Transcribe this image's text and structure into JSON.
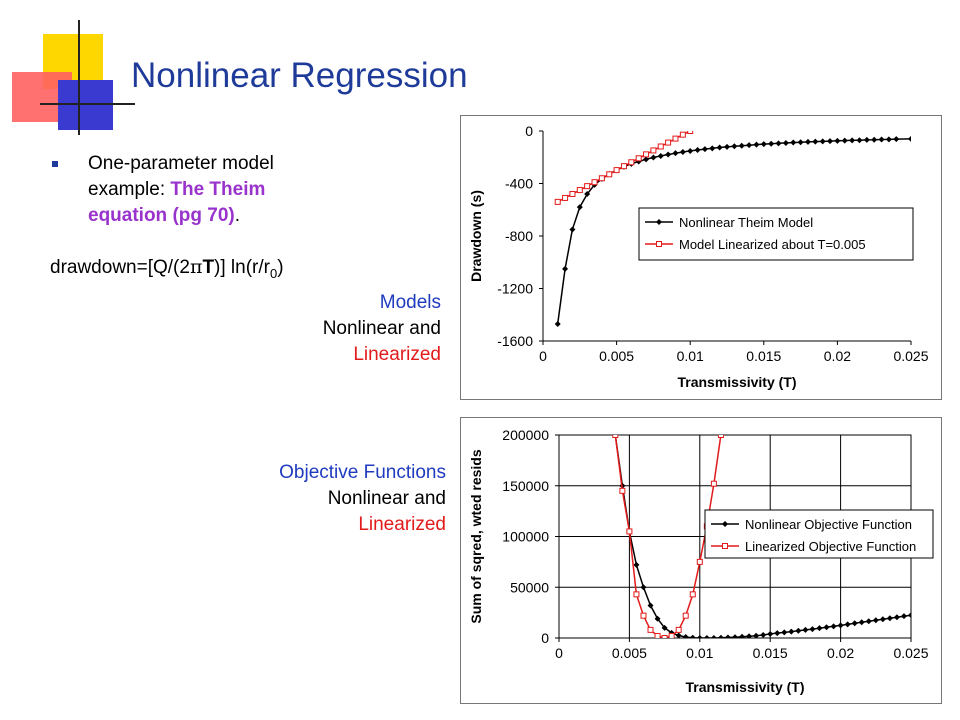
{
  "slide": {
    "title": "Nonlinear Regression",
    "bullet_prefix": "One-parameter model example: ",
    "bullet_highlight": "The Theim equation (pg 70)",
    "bullet_suffix": ".",
    "equation": {
      "part1": "drawdown=[Q/(2",
      "pi": "π",
      "T": "T",
      "part2": ")] ln(r/r",
      "sub": "0",
      "part3": ")"
    },
    "models_caption": {
      "line1": "Models",
      "line2": "Nonlinear and",
      "line3": "Linearized"
    },
    "objective_caption": {
      "line1": "Objective Functions",
      "line2": "Nonlinear and",
      "line3": "Linearized"
    }
  },
  "colors": {
    "title": "#1f3b99",
    "accent": "#9933cc",
    "caption_blue": "#1f3bbf",
    "caption_red": "#e31a1a",
    "series_nonlinear": "#000000",
    "series_linearized": "#e31a1a",
    "deco_yellow": "#ffd700",
    "deco_red": "#ff5a5a",
    "deco_blue": "#3a3ad0"
  },
  "chart_data": [
    {
      "type": "line",
      "xlabel": "Transmissivity (T)",
      "ylabel": "Drawdown (s)",
      "xlim": [
        0,
        0.025
      ],
      "ylim": [
        -1600,
        0
      ],
      "xticks": [
        0,
        0.005,
        0.01,
        0.015,
        0.02,
        0.025
      ],
      "xtick_labels": [
        "0",
        "0.005",
        "0.01",
        "0.015",
        "0.02",
        "0.025"
      ],
      "yticks": [
        0,
        -400,
        -800,
        -1200,
        -1600
      ],
      "ytick_labels": [
        "0",
        "-400",
        "-800",
        "-1200",
        "-1600"
      ],
      "grid": false,
      "legend": "right",
      "series": [
        {
          "name": "Nonlinear Theim Model",
          "marker": "diamond",
          "points": [
            [
              0.001,
              -1470
            ],
            [
              0.0015,
              -1050
            ],
            [
              0.002,
              -750
            ],
            [
              0.0025,
              -580
            ],
            [
              0.003,
              -480
            ],
            [
              0.0035,
              -410
            ],
            [
              0.004,
              -365
            ],
            [
              0.0045,
              -328
            ],
            [
              0.005,
              -298
            ],
            [
              0.0055,
              -272
            ],
            [
              0.006,
              -250
            ],
            [
              0.0065,
              -232
            ],
            [
              0.007,
              -216
            ],
            [
              0.0075,
              -202
            ],
            [
              0.008,
              -190
            ],
            [
              0.0085,
              -179
            ],
            [
              0.009,
              -169
            ],
            [
              0.0095,
              -160
            ],
            [
              0.01,
              -152
            ],
            [
              0.0105,
              -145
            ],
            [
              0.011,
              -138
            ],
            [
              0.0115,
              -132
            ],
            [
              0.012,
              -126
            ],
            [
              0.0125,
              -121
            ],
            [
              0.013,
              -116
            ],
            [
              0.0135,
              -112
            ],
            [
              0.014,
              -108
            ],
            [
              0.0145,
              -104
            ],
            [
              0.015,
              -100
            ],
            [
              0.0155,
              -97
            ],
            [
              0.016,
              -94
            ],
            [
              0.0165,
              -91
            ],
            [
              0.017,
              -88
            ],
            [
              0.0175,
              -86
            ],
            [
              0.018,
              -83
            ],
            [
              0.0185,
              -81
            ],
            [
              0.019,
              -79
            ],
            [
              0.0195,
              -77
            ],
            [
              0.02,
              -75
            ],
            [
              0.0205,
              -73
            ],
            [
              0.021,
              -71
            ],
            [
              0.0215,
              -70
            ],
            [
              0.022,
              -68
            ],
            [
              0.0225,
              -67
            ],
            [
              0.023,
              -65
            ],
            [
              0.0235,
              -64
            ],
            [
              0.024,
              -62
            ],
            [
              0.025,
              -60
            ]
          ]
        },
        {
          "name": "Model Linearized about T=0.005",
          "marker": "square",
          "points": [
            [
              0.001,
              -540
            ],
            [
              0.0015,
              -510
            ],
            [
              0.002,
              -480
            ],
            [
              0.0025,
              -450
            ],
            [
              0.003,
              -420
            ],
            [
              0.0035,
              -390
            ],
            [
              0.004,
              -360
            ],
            [
              0.0045,
              -330
            ],
            [
              0.005,
              -298
            ],
            [
              0.0055,
              -268
            ],
            [
              0.006,
              -238
            ],
            [
              0.0065,
              -208
            ],
            [
              0.007,
              -178
            ],
            [
              0.0075,
              -148
            ],
            [
              0.008,
              -118
            ],
            [
              0.0085,
              -88
            ],
            [
              0.009,
              -58
            ],
            [
              0.0095,
              -28
            ],
            [
              0.01,
              0
            ]
          ]
        }
      ]
    },
    {
      "type": "line",
      "xlabel": "Transmissivity (T)",
      "ylabel": "Sum of sqred, wted resids",
      "xlim": [
        0,
        0.025
      ],
      "ylim": [
        0,
        200000
      ],
      "xticks": [
        0,
        0.005,
        0.01,
        0.015,
        0.02,
        0.025
      ],
      "xtick_labels": [
        "0",
        "0.005",
        "0.01",
        "0.015",
        "0.02",
        "0.025"
      ],
      "yticks": [
        0,
        50000,
        100000,
        150000,
        200000
      ],
      "ytick_labels": [
        "0",
        "50000",
        "100000",
        "150000",
        "200000"
      ],
      "grid": true,
      "legend": "right",
      "series": [
        {
          "name": "Nonlinear Objective Function",
          "marker": "diamond",
          "points": [
            [
              0.004,
              200000
            ],
            [
              0.0045,
              150000
            ],
            [
              0.005,
              105000
            ],
            [
              0.0055,
              72000
            ],
            [
              0.006,
              50000
            ],
            [
              0.0065,
              32000
            ],
            [
              0.007,
              19000
            ],
            [
              0.0075,
              10000
            ],
            [
              0.008,
              5000
            ],
            [
              0.0085,
              2500
            ],
            [
              0.009,
              1000
            ],
            [
              0.0095,
              300
            ],
            [
              0.01,
              0
            ],
            [
              0.0105,
              0
            ],
            [
              0.011,
              0
            ],
            [
              0.0115,
              200
            ],
            [
              0.012,
              500
            ],
            [
              0.0125,
              800
            ],
            [
              0.013,
              1200
            ],
            [
              0.0135,
              1700
            ],
            [
              0.014,
              2200
            ],
            [
              0.0145,
              3000
            ],
            [
              0.015,
              4000
            ],
            [
              0.0155,
              4800
            ],
            [
              0.016,
              5500
            ],
            [
              0.0165,
              6300
            ],
            [
              0.017,
              7100
            ],
            [
              0.0175,
              8000
            ],
            [
              0.018,
              8800
            ],
            [
              0.0185,
              9700
            ],
            [
              0.019,
              10600
            ],
            [
              0.0195,
              11500
            ],
            [
              0.02,
              12400
            ],
            [
              0.0205,
              13400
            ],
            [
              0.021,
              14500
            ],
            [
              0.0215,
              15500
            ],
            [
              0.022,
              16500
            ],
            [
              0.0225,
              17500
            ],
            [
              0.023,
              18500
            ],
            [
              0.0235,
              19500
            ],
            [
              0.024,
              20500
            ],
            [
              0.0245,
              21500
            ],
            [
              0.025,
              22500
            ]
          ]
        },
        {
          "name": "Linearized Objective Function",
          "marker": "square",
          "points": [
            [
              0.004,
              200000
            ],
            [
              0.0045,
              145000
            ],
            [
              0.005,
              105000
            ],
            [
              0.0055,
              43000
            ],
            [
              0.006,
              22000
            ],
            [
              0.0065,
              8000
            ],
            [
              0.007,
              2000
            ],
            [
              0.0075,
              0
            ],
            [
              0.008,
              2000
            ],
            [
              0.0085,
              8000
            ],
            [
              0.009,
              22000
            ],
            [
              0.0095,
              43000
            ],
            [
              0.01,
              75000
            ],
            [
              0.0105,
              110000
            ],
            [
              0.011,
              152000
            ],
            [
              0.0115,
              200000
            ]
          ]
        }
      ]
    }
  ]
}
